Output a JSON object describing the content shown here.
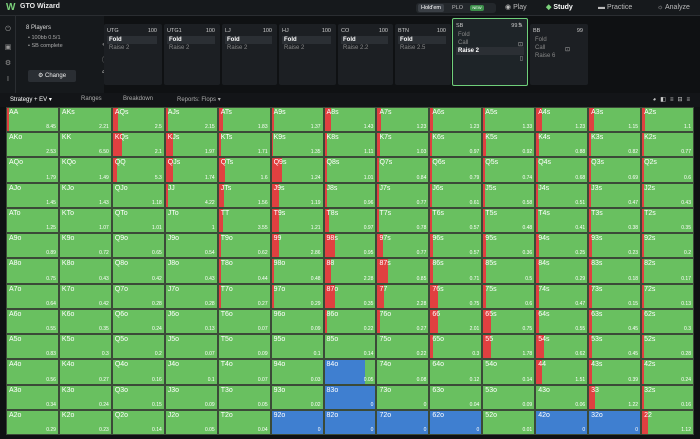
{
  "app": {
    "title": "GTO Wizard",
    "logo": "W"
  },
  "topbar": {
    "game_selected": "Hold'em",
    "game_other": "PLO",
    "game_badge": "NEW",
    "nav": [
      {
        "label": "Play",
        "icon": "play-icon"
      },
      {
        "label": "Study",
        "icon": "study-icon"
      },
      {
        "label": "Practice",
        "icon": "practice-icon"
      },
      {
        "label": "Analyze",
        "icon": "analyze-icon"
      }
    ]
  },
  "info": {
    "players": "8 Players",
    "stakes": "• 100bb 0.5/1",
    "status": "• SB complete",
    "change": "Change"
  },
  "positions": [
    {
      "name": "UTG",
      "stack": "100",
      "actions": [
        "Fold",
        "Raise 2"
      ],
      "selected": 0
    },
    {
      "name": "UTG1",
      "stack": "100",
      "actions": [
        "Fold",
        "Raise 2"
      ],
      "selected": 0
    },
    {
      "name": "LJ",
      "stack": "100",
      "actions": [
        "Fold",
        "Raise 2"
      ],
      "selected": 0
    },
    {
      "name": "HJ",
      "stack": "100",
      "actions": [
        "Fold",
        "Raise 2"
      ],
      "selected": 0
    },
    {
      "name": "CO",
      "stack": "100",
      "actions": [
        "Fold",
        "Raise 2.2"
      ],
      "selected": 0
    },
    {
      "name": "BTN",
      "stack": "100",
      "actions": [
        "Fold",
        "Raise 2.5"
      ],
      "selected": 0
    },
    {
      "name": "SB",
      "stack": "99.5",
      "actions": [
        "Fold",
        "Call",
        "Raise 2"
      ],
      "selected": 2,
      "active": true
    },
    {
      "name": "BB",
      "stack": "99",
      "actions": [
        "Fold",
        "Call",
        "Raise 6"
      ],
      "selected": -1
    }
  ],
  "toolbar": {
    "strategy": "Strategy + EV",
    "ranges": "Ranges",
    "breakdown": "Breakdown",
    "reports": "Reports: Flops"
  },
  "colors": {
    "raise": "#69c060",
    "fold": "#3f7fd0",
    "call": "#e04040"
  },
  "hands": [
    [
      "AA",
      "8.45",
      0.03,
      0,
      0
    ],
    [
      "AKs",
      "2.21",
      0,
      0,
      0
    ],
    [
      "AQs",
      "2.5",
      0.1,
      0,
      0
    ],
    [
      "AJs",
      "2.15",
      0.05,
      0,
      0
    ],
    [
      "ATs",
      "1.83",
      0.08,
      0,
      0
    ],
    [
      "A9s",
      "1.37",
      0.05,
      0,
      0
    ],
    [
      "A8s",
      "1.43",
      0.12,
      0,
      0
    ],
    [
      "A7s",
      "1.23",
      0.06,
      0,
      0
    ],
    [
      "A6s",
      "1.23",
      0.05,
      0,
      0
    ],
    [
      "A5s",
      "1.33",
      0.04,
      0,
      0
    ],
    [
      "A4s",
      "1.23",
      0.12,
      0,
      0
    ],
    [
      "A3s",
      "1.15",
      0.1,
      0,
      0
    ],
    [
      "A2s",
      "1.1",
      0.05,
      0,
      0
    ],
    [
      "AKo",
      "2.53",
      0,
      0,
      0
    ],
    [
      "KK",
      "6.50",
      0,
      0,
      0
    ],
    [
      "KQs",
      "2.1",
      0.18,
      0,
      0
    ],
    [
      "KJs",
      "1.97",
      0.15,
      0,
      0
    ],
    [
      "KTs",
      "1.71",
      0.05,
      0,
      0
    ],
    [
      "K9s",
      "1.35",
      0.03,
      0,
      0
    ],
    [
      "K8s",
      "1.11",
      0.05,
      0,
      0
    ],
    [
      "K7s",
      "1.03",
      0.05,
      0,
      0
    ],
    [
      "K6s",
      "0.97",
      0.04,
      0,
      0
    ],
    [
      "K5s",
      "0.92",
      0.05,
      0,
      0
    ],
    [
      "K4s",
      "0.88",
      0.05,
      0,
      0
    ],
    [
      "K3s",
      "0.82",
      0.04,
      0,
      0
    ],
    [
      "K2s",
      "0.77",
      0.03,
      0,
      0
    ],
    [
      "AQo",
      "1.79",
      0,
      0,
      0
    ],
    [
      "KQo",
      "1.49",
      0,
      0,
      0
    ],
    [
      "QQ",
      "5.3",
      0.08,
      0,
      0
    ],
    [
      "QJs",
      "1.74",
      0.15,
      0,
      0
    ],
    [
      "QTs",
      "1.6",
      0.12,
      0,
      0
    ],
    [
      "Q9s",
      "1.24",
      0.2,
      0,
      0
    ],
    [
      "Q8s",
      "1.01",
      0.04,
      0,
      0
    ],
    [
      "Q7s",
      "0.84",
      0.03,
      0,
      0
    ],
    [
      "Q6s",
      "0.79",
      0.04,
      0,
      0
    ],
    [
      "Q5s",
      "0.74",
      0.04,
      0,
      0
    ],
    [
      "Q4s",
      "0.68",
      0.04,
      0,
      0
    ],
    [
      "Q3s",
      "0.69",
      0.04,
      0,
      0
    ],
    [
      "Q2s",
      "0.6",
      0.03,
      0,
      0
    ],
    [
      "AJo",
      "1.45",
      0,
      0,
      0
    ],
    [
      "KJo",
      "1.43",
      0,
      0,
      0
    ],
    [
      "QJo",
      "1.18",
      0,
      0,
      0
    ],
    [
      "JJ",
      "4.22",
      0.05,
      0,
      0
    ],
    [
      "JTs",
      "1.56",
      0.1,
      0,
      0
    ],
    [
      "J9s",
      "1.19",
      0.15,
      0,
      0
    ],
    [
      "J8s",
      "0.96",
      0.05,
      0,
      0
    ],
    [
      "J7s",
      "0.77",
      0.04,
      0,
      0
    ],
    [
      "J6s",
      "0.61",
      0.04,
      0,
      0
    ],
    [
      "J5s",
      "0.58",
      0.04,
      0,
      0
    ],
    [
      "J4s",
      "0.51",
      0.04,
      0,
      0
    ],
    [
      "J3s",
      "0.47",
      0.04,
      0,
      0
    ],
    [
      "J2s",
      "0.43",
      0.03,
      0,
      0
    ],
    [
      "ATo",
      "1.25",
      0,
      0,
      0
    ],
    [
      "KTo",
      "1.07",
      0,
      0,
      0
    ],
    [
      "QTo",
      "1.01",
      0,
      0,
      0
    ],
    [
      "JTo",
      "1",
      0,
      0,
      0
    ],
    [
      "TT",
      "3.55",
      0.08,
      0,
      0
    ],
    [
      "T9s",
      "1.21",
      0.15,
      0,
      0
    ],
    [
      "T8s",
      "0.97",
      0.08,
      0,
      0
    ],
    [
      "T7s",
      "0.78",
      0.04,
      0,
      0
    ],
    [
      "T6s",
      "0.57",
      0.04,
      0,
      0
    ],
    [
      "T5s",
      "0.48",
      0.04,
      0,
      0
    ],
    [
      "T4s",
      "0.41",
      0.04,
      0,
      0
    ],
    [
      "T3s",
      "0.38",
      0.04,
      0,
      0
    ],
    [
      "T2s",
      "0.35",
      0.03,
      0,
      0
    ],
    [
      "A9o",
      "0.89",
      0,
      0,
      0
    ],
    [
      "K9o",
      "0.72",
      0,
      0,
      0
    ],
    [
      "Q9o",
      "0.65",
      0,
      0,
      0
    ],
    [
      "J9o",
      "0.54",
      0,
      0,
      0
    ],
    [
      "T9o",
      "0.62",
      0.05,
      0,
      0
    ],
    [
      "99",
      "2.86",
      0.15,
      0,
      0
    ],
    [
      "98s",
      "0.95",
      0.2,
      0,
      0
    ],
    [
      "97s",
      "0.77",
      0.1,
      0,
      0
    ],
    [
      "96s",
      "0.57",
      0.06,
      0,
      0
    ],
    [
      "95s",
      "0.36",
      0.06,
      0,
      0
    ],
    [
      "94s",
      "0.25",
      0.05,
      0,
      0
    ],
    [
      "93s",
      "0.23",
      0.05,
      0,
      0
    ],
    [
      "92s",
      "0.2",
      0.04,
      0,
      0
    ],
    [
      "A8o",
      "0.75",
      0,
      0,
      0
    ],
    [
      "K8o",
      "0.43",
      0,
      0,
      0
    ],
    [
      "Q8o",
      "0.42",
      0,
      0,
      0
    ],
    [
      "J8o",
      "0.43",
      0,
      0,
      0
    ],
    [
      "T8o",
      "0.44",
      0.05,
      0,
      0
    ],
    [
      "98o",
      "0.48",
      0.05,
      0,
      0
    ],
    [
      "88",
      "2.28",
      0.12,
      0,
      0
    ],
    [
      "87s",
      "0.85",
      0.2,
      0,
      0
    ],
    [
      "86s",
      "0.71",
      0.06,
      0,
      0
    ],
    [
      "85s",
      "0.5",
      0.05,
      0,
      0
    ],
    [
      "84s",
      "0.29",
      0.05,
      0,
      0
    ],
    [
      "83s",
      "0.18",
      0.05,
      0,
      0
    ],
    [
      "82s",
      "0.17",
      0.04,
      0,
      0
    ],
    [
      "A7o",
      "0.64",
      0,
      0,
      0
    ],
    [
      "K7o",
      "0.42",
      0,
      0,
      0
    ],
    [
      "Q7o",
      "0.28",
      0,
      0,
      0
    ],
    [
      "J7o",
      "0.28",
      0,
      0,
      0
    ],
    [
      "T7o",
      "0.27",
      0.05,
      0,
      0
    ],
    [
      "97o",
      "0.29",
      0.05,
      0,
      0
    ],
    [
      "87o",
      "0.35",
      0.2,
      0,
      0
    ],
    [
      "77",
      "2.28",
      0.12,
      0,
      0
    ],
    [
      "76s",
      "0.75",
      0.15,
      0,
      0
    ],
    [
      "75s",
      "0.6",
      0.05,
      0,
      0
    ],
    [
      "74s",
      "0.47",
      0.05,
      0,
      0
    ],
    [
      "73s",
      "0.15",
      0.05,
      0,
      0
    ],
    [
      "72s",
      "0.13",
      0.04,
      0,
      0
    ],
    [
      "A6o",
      "0.55",
      0,
      0,
      0
    ],
    [
      "K6o",
      "0.35",
      0,
      0,
      0
    ],
    [
      "Q6o",
      "0.24",
      0,
      0,
      0
    ],
    [
      "J6o",
      "0.13",
      0,
      0,
      0
    ],
    [
      "T6o",
      "0.07",
      0,
      0,
      0
    ],
    [
      "96o",
      "0.09",
      0,
      0,
      0
    ],
    [
      "86o",
      "0.22",
      0.05,
      0,
      0
    ],
    [
      "76o",
      "0.27",
      0.05,
      0,
      0
    ],
    [
      "66",
      "2.01",
      0.15,
      0,
      0
    ],
    [
      "65s",
      "0.75",
      0.15,
      0,
      0
    ],
    [
      "64s",
      "0.55",
      0.05,
      0,
      0
    ],
    [
      "63s",
      "0.45",
      0.05,
      0,
      0
    ],
    [
      "62s",
      "0.3",
      0.04,
      0,
      0
    ],
    [
      "A5o",
      "0.83",
      0,
      0,
      0
    ],
    [
      "K5o",
      "0.3",
      0,
      0,
      0
    ],
    [
      "Q5o",
      "0.2",
      0,
      0,
      0
    ],
    [
      "J5o",
      "0.07",
      0,
      0,
      0
    ],
    [
      "T5o",
      "0.09",
      0,
      0,
      0
    ],
    [
      "95o",
      "0.1",
      0,
      0,
      0
    ],
    [
      "85o",
      "0.14",
      0,
      0,
      0
    ],
    [
      "75o",
      "0.22",
      0,
      0,
      0
    ],
    [
      "65o",
      "0.3",
      0.05,
      0,
      0
    ],
    [
      "55",
      "1.78",
      0.15,
      0,
      0
    ],
    [
      "54s",
      "0.62",
      0.15,
      0,
      0
    ],
    [
      "53s",
      "0.45",
      0.05,
      0,
      0
    ],
    [
      "52s",
      "0.28",
      0.04,
      0,
      0
    ],
    [
      "A4o",
      "0.56",
      0,
      0,
      0
    ],
    [
      "K4o",
      "0.27",
      0,
      0,
      0
    ],
    [
      "Q4o",
      "0.16",
      0,
      0,
      0
    ],
    [
      "J4o",
      "0.1",
      0,
      0,
      0
    ],
    [
      "T4o",
      "0.07",
      0,
      0,
      0
    ],
    [
      "94o",
      "0.03",
      0,
      0,
      0
    ],
    [
      "84o",
      "0.05",
      0,
      0.8,
      0
    ],
    [
      "74o",
      "0.08",
      0,
      0,
      0
    ],
    [
      "64o",
      "0.12",
      0,
      0,
      0
    ],
    [
      "54o",
      "0.14",
      0,
      0,
      0
    ],
    [
      "44",
      "1.51",
      0.12,
      0,
      0
    ],
    [
      "43s",
      "0.39",
      0.05,
      0,
      0
    ],
    [
      "42s",
      "0.24",
      0.04,
      0,
      0
    ],
    [
      "A3o",
      "0.34",
      0,
      0,
      0
    ],
    [
      "K3o",
      "0.24",
      0,
      0,
      0
    ],
    [
      "Q3o",
      "0.15",
      0,
      0,
      0
    ],
    [
      "J3o",
      "0.09",
      0,
      0,
      0
    ],
    [
      "T3o",
      "0.05",
      0,
      0,
      0
    ],
    [
      "93o",
      "0.02",
      0,
      0,
      0
    ],
    [
      "83o",
      "0",
      0,
      1,
      0
    ],
    [
      "73o",
      "0",
      0,
      0,
      0
    ],
    [
      "63o",
      "0.04",
      0,
      0,
      0
    ],
    [
      "53o",
      "0.09",
      0,
      0,
      0
    ],
    [
      "43o",
      "0.06",
      0,
      0,
      0
    ],
    [
      "33",
      "1.22",
      0.12,
      0,
      0
    ],
    [
      "32s",
      "0.16",
      0.04,
      0,
      0
    ],
    [
      "A2o",
      "0.29",
      0,
      0,
      0
    ],
    [
      "K2o",
      "0.23",
      0,
      0,
      0
    ],
    [
      "Q2o",
      "0.14",
      0,
      0,
      0
    ],
    [
      "J2o",
      "0.05",
      0,
      0,
      0
    ],
    [
      "T2o",
      "0.04",
      0,
      0,
      0
    ],
    [
      "92o",
      "0",
      0,
      1,
      0
    ],
    [
      "82o",
      "0",
      0,
      1,
      0
    ],
    [
      "72o",
      "0",
      0,
      1,
      0
    ],
    [
      "62o",
      "0",
      0,
      1,
      0
    ],
    [
      "52o",
      "0.01",
      0,
      0,
      0
    ],
    [
      "42o",
      "0",
      0,
      1,
      0
    ],
    [
      "32o",
      "0",
      0,
      1,
      0
    ],
    [
      "22",
      "1.12",
      0.12,
      0,
      0
    ]
  ]
}
